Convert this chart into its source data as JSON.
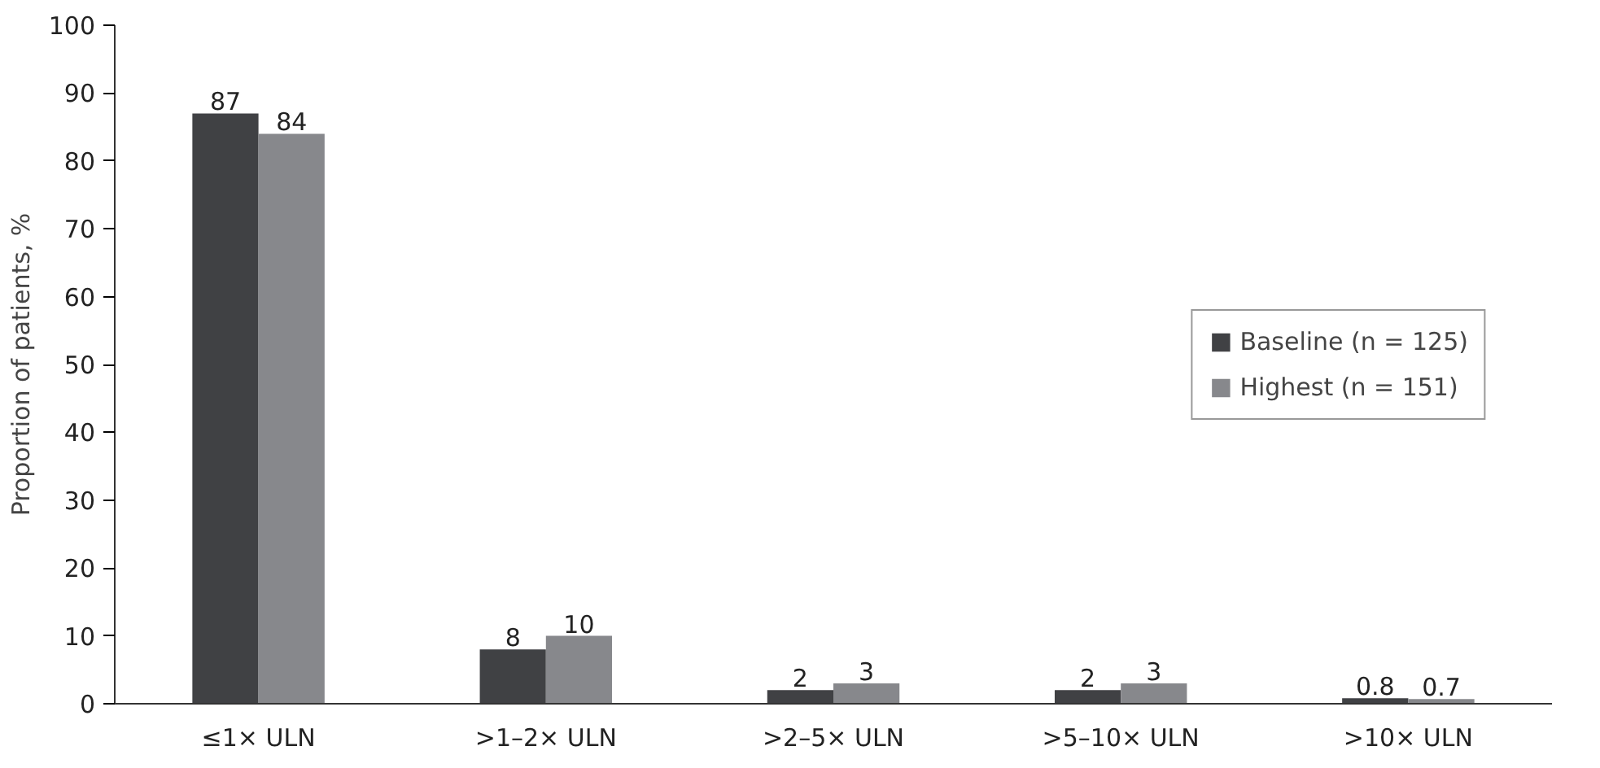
{
  "chart_data": {
    "type": "bar",
    "ylabel": "Proportion of patients, %",
    "categories": [
      "≤1× ULN",
      ">1–2× ULN",
      ">2–5× ULN",
      ">5–10× ULN",
      ">10× ULN"
    ],
    "series": [
      {
        "name": "Baseline (n = 125)",
        "color": "#404144",
        "values": [
          87,
          8,
          2,
          2,
          0.8
        ]
      },
      {
        "name": "Highest (n = 151)",
        "color": "#87888c",
        "values": [
          84,
          10,
          3,
          3,
          0.7
        ]
      }
    ],
    "ylim": [
      0,
      100
    ],
    "yticks": [
      0,
      10,
      20,
      30,
      40,
      50,
      60,
      70,
      80,
      90,
      100
    ],
    "data_labels": true,
    "legend": "right",
    "grid": false
  }
}
